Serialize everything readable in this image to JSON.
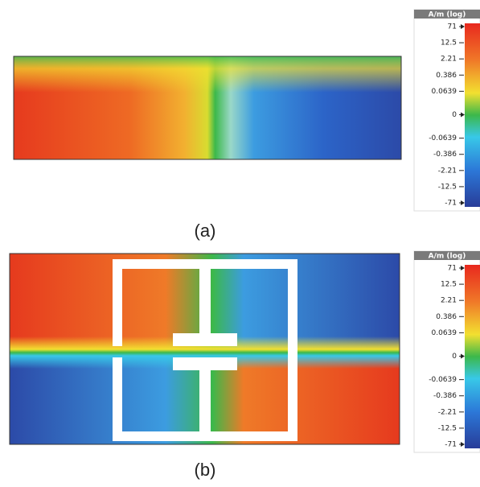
{
  "panels": [
    {
      "caption": "(a)",
      "colorbar": {
        "title": "A/m (log)",
        "ticks": [
          "71",
          "12.5",
          "2.21",
          "0.386",
          "0.0639",
          "0",
          "-0.0639",
          "-0.386",
          "-2.21",
          "-12.5",
          "-71"
        ]
      }
    },
    {
      "caption": "(b)",
      "colorbar": {
        "title": "A/m (log)",
        "ticks": [
          "71",
          "12.5",
          "2.21",
          "0.386",
          "0.0639",
          "0",
          "-0.0639",
          "-0.386",
          "-2.21",
          "-12.5",
          "-71"
        ]
      }
    }
  ]
}
